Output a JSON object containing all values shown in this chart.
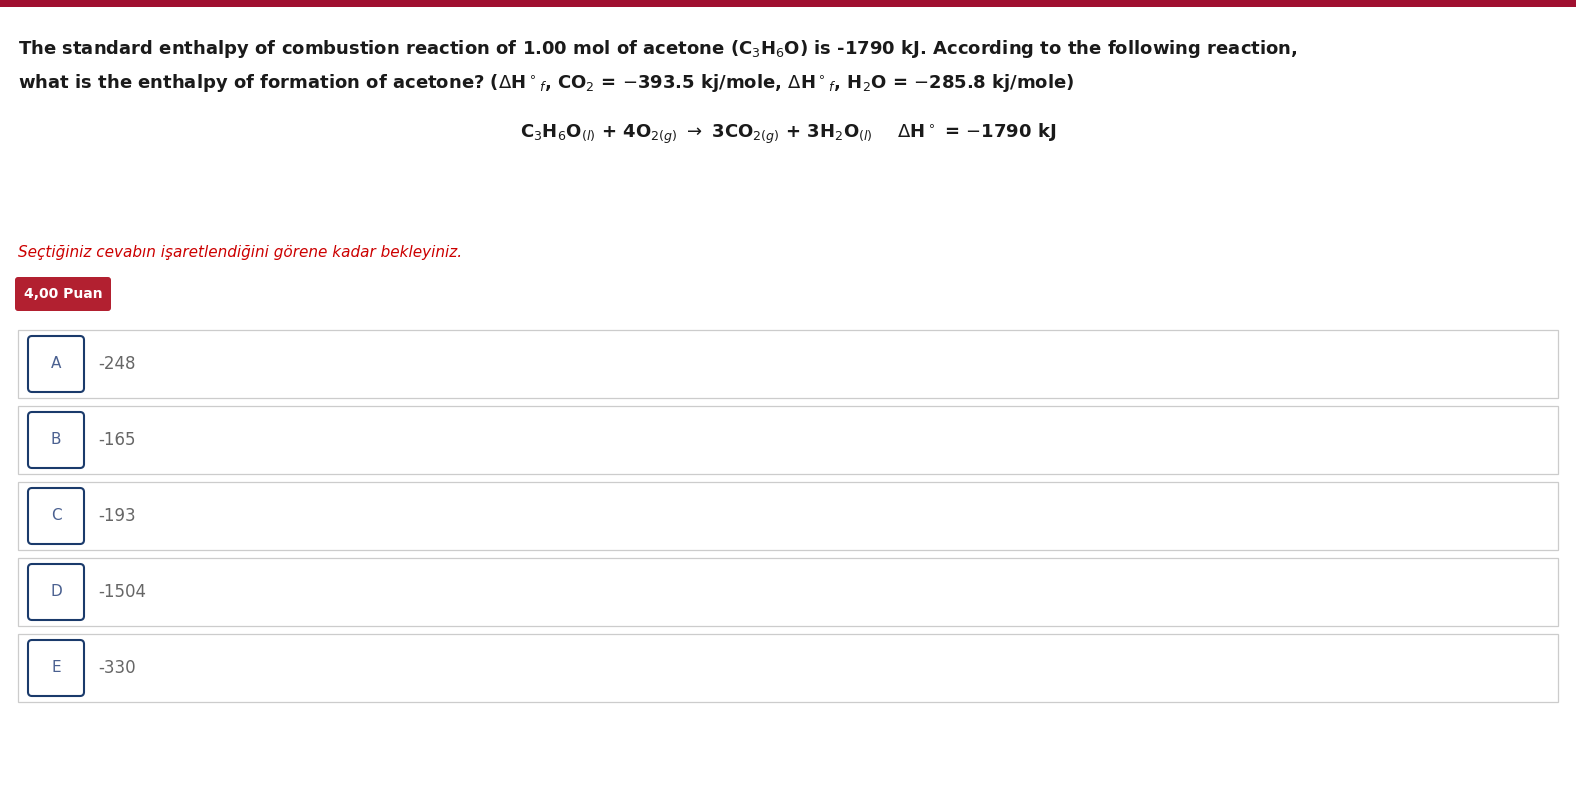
{
  "top_bar_color": "#a01030",
  "background_color": "#ffffff",
  "question_line1": "The standard enthalpy of combustion reaction of 1.00 mol of acetone (C$_3$H$_6$O) is -1790 kJ. According to the following reaction,",
  "question_line2": "what is the enthalpy of formation of acetone? ($\\Delta$H$^\\circ$$_f$, CO$_2$ = $-$393.5 kj/mole, $\\Delta$H$^\\circ$$_f$, H$_2$O = $-$285.8 kj/mole)",
  "reaction": "C$_3$H$_6$O$_{(l)}$ + 4O$_{2(g)}$ $\\rightarrow$ 3CO$_{2(g)}$ + 3H$_2$O$_{(l)}$    $\\Delta$H$^\\circ$ = $-$1790 kJ",
  "wait_text": "Seçtiğiniz cevabın işaretlendiğini görene kadar bekleyiniz.",
  "wait_color": "#cc0000",
  "points_label": "4,00 Puan",
  "points_bg": "#b22030",
  "points_fg": "#ffffff",
  "option_label_border": "#1a3a6b",
  "option_label_color": "#4a6090",
  "option_value_color": "#666666",
  "option_border_color": "#cccccc",
  "options": [
    {
      "label": "A",
      "value": "-248"
    },
    {
      "label": "B",
      "value": "-165"
    },
    {
      "label": "C",
      "value": "-193"
    },
    {
      "label": "D",
      "value": "-1504"
    },
    {
      "label": "E",
      "value": "-330"
    }
  ],
  "fig_width": 15.76,
  "fig_height": 7.9,
  "dpi": 100
}
